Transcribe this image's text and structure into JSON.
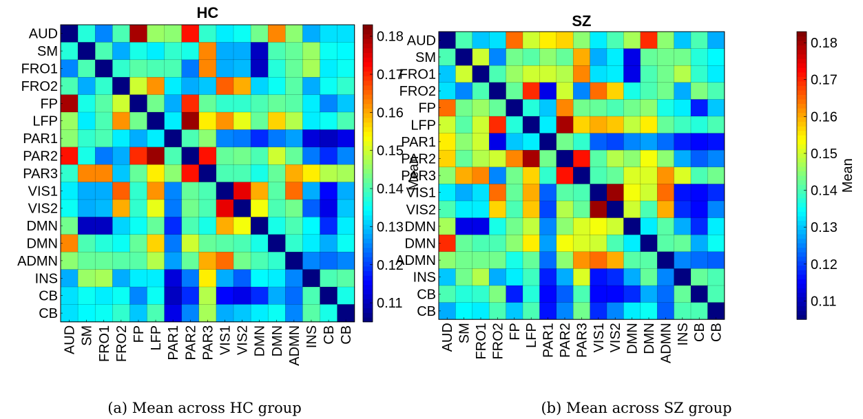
{
  "chart_data": [
    {
      "type": "heatmap",
      "title": "HC",
      "caption": "(a) Mean across HC group",
      "rows": [
        "AUD",
        "SM",
        "FRO1",
        "FRO2",
        "FP",
        "LFP",
        "PAR1",
        "PAR2",
        "PAR3",
        "VIS1",
        "VIS2",
        "DMN",
        "DMN",
        "ADMN",
        "INS",
        "CB",
        "CB"
      ],
      "cols": [
        "AUD",
        "SM",
        "FRO1",
        "FRO2",
        "FP",
        "LFP",
        "PAR1",
        "PAR2",
        "PAR3",
        "VIS1",
        "VIS2",
        "DMN",
        "DMN",
        "ADMN",
        "INS",
        "CB",
        "CB"
      ],
      "values": [
        [
          0.105,
          0.137,
          0.125,
          0.14,
          0.18,
          0.146,
          0.145,
          0.172,
          0.138,
          0.133,
          0.135,
          0.143,
          0.163,
          0.145,
          0.128,
          0.132,
          0.132
        ],
        [
          0.137,
          0.105,
          0.14,
          0.128,
          0.136,
          0.133,
          0.138,
          0.136,
          0.163,
          0.128,
          0.128,
          0.11,
          0.14,
          0.142,
          0.146,
          0.135,
          0.134
        ],
        [
          0.125,
          0.14,
          0.105,
          0.138,
          0.141,
          0.14,
          0.14,
          0.124,
          0.163,
          0.128,
          0.129,
          0.11,
          0.137,
          0.142,
          0.147,
          0.133,
          0.135
        ],
        [
          0.14,
          0.128,
          0.138,
          0.105,
          0.15,
          0.162,
          0.133,
          0.128,
          0.13,
          0.166,
          0.16,
          0.131,
          0.135,
          0.141,
          0.128,
          0.135,
          0.138
        ],
        [
          0.18,
          0.136,
          0.141,
          0.15,
          0.105,
          0.143,
          0.128,
          0.17,
          0.142,
          0.138,
          0.138,
          0.14,
          0.142,
          0.141,
          0.133,
          0.125,
          0.13
        ],
        [
          0.146,
          0.133,
          0.14,
          0.162,
          0.143,
          0.105,
          0.133,
          0.181,
          0.155,
          0.162,
          0.152,
          0.142,
          0.157,
          0.148,
          0.133,
          0.135,
          0.14
        ],
        [
          0.145,
          0.138,
          0.14,
          0.133,
          0.128,
          0.133,
          0.105,
          0.14,
          0.145,
          0.125,
          0.124,
          0.118,
          0.124,
          0.127,
          0.112,
          0.11,
          0.113
        ],
        [
          0.172,
          0.136,
          0.124,
          0.128,
          0.17,
          0.181,
          0.14,
          0.105,
          0.172,
          0.142,
          0.143,
          0.14,
          0.15,
          0.142,
          0.124,
          0.118,
          0.125
        ],
        [
          0.138,
          0.163,
          0.163,
          0.13,
          0.142,
          0.155,
          0.145,
          0.172,
          0.105,
          0.14,
          0.14,
          0.136,
          0.142,
          0.16,
          0.155,
          0.148,
          0.147
        ],
        [
          0.133,
          0.128,
          0.128,
          0.166,
          0.138,
          0.162,
          0.125,
          0.142,
          0.14,
          0.105,
          0.175,
          0.16,
          0.141,
          0.165,
          0.128,
          0.115,
          0.128
        ],
        [
          0.135,
          0.128,
          0.129,
          0.16,
          0.138,
          0.152,
          0.124,
          0.143,
          0.14,
          0.175,
          0.105,
          0.153,
          0.14,
          0.143,
          0.122,
          0.113,
          0.13
        ],
        [
          0.143,
          0.11,
          0.11,
          0.131,
          0.135,
          0.142,
          0.118,
          0.14,
          0.136,
          0.16,
          0.153,
          0.105,
          0.136,
          0.14,
          0.134,
          0.118,
          0.133
        ],
        [
          0.163,
          0.14,
          0.137,
          0.135,
          0.142,
          0.157,
          0.124,
          0.15,
          0.142,
          0.141,
          0.14,
          0.136,
          0.105,
          0.138,
          0.133,
          0.128,
          0.135
        ],
        [
          0.145,
          0.142,
          0.142,
          0.141,
          0.141,
          0.148,
          0.127,
          0.142,
          0.16,
          0.165,
          0.143,
          0.14,
          0.138,
          0.105,
          0.125,
          0.123,
          0.125
        ],
        [
          0.128,
          0.146,
          0.147,
          0.128,
          0.133,
          0.133,
          0.112,
          0.124,
          0.155,
          0.128,
          0.122,
          0.134,
          0.133,
          0.125,
          0.105,
          0.14,
          0.141
        ],
        [
          0.132,
          0.135,
          0.133,
          0.135,
          0.125,
          0.135,
          0.11,
          0.118,
          0.148,
          0.115,
          0.113,
          0.118,
          0.128,
          0.123,
          0.14,
          0.105,
          0.136
        ],
        [
          0.132,
          0.134,
          0.135,
          0.138,
          0.13,
          0.14,
          0.113,
          0.125,
          0.147,
          0.128,
          0.13,
          0.133,
          0.135,
          0.125,
          0.141,
          0.136,
          0.105
        ]
      ],
      "clim": [
        0.105,
        0.183
      ],
      "colorbar": {
        "label": "Mean",
        "ticks": [
          "0.11",
          "0.12",
          "0.13",
          "0.14",
          "0.15",
          "0.16",
          "0.17",
          "0.18"
        ],
        "tick_values": [
          0.11,
          0.12,
          0.13,
          0.14,
          0.15,
          0.16,
          0.17,
          0.18
        ]
      },
      "colormap": "jet",
      "grid": true
    },
    {
      "type": "heatmap",
      "title": "SZ",
      "caption": "(b) Mean across SZ group",
      "rows": [
        "AUD",
        "SM",
        "FRO1",
        "FRO2",
        "FP",
        "LFP",
        "PAR1",
        "PAR2",
        "PAR3",
        "VIS1",
        "VIS2",
        "DMN",
        "DMN",
        "ADMN",
        "INS",
        "CB",
        "CB"
      ],
      "cols": [
        "AUD",
        "SM",
        "FRO1",
        "FRO2",
        "FP",
        "LFP",
        "PAR1",
        "PAR2",
        "PAR3",
        "VIS1",
        "VIS2",
        "DMN",
        "DMN",
        "ADMN",
        "INS",
        "CB",
        "CB"
      ],
      "values": [
        [
          0.105,
          0.14,
          0.13,
          0.132,
          0.165,
          0.15,
          0.155,
          0.157,
          0.145,
          0.133,
          0.14,
          0.147,
          0.17,
          0.145,
          0.13,
          0.14,
          0.128
        ],
        [
          0.14,
          0.105,
          0.15,
          0.125,
          0.143,
          0.141,
          0.145,
          0.142,
          0.16,
          0.128,
          0.133,
          0.113,
          0.142,
          0.143,
          0.143,
          0.137,
          0.134
        ],
        [
          0.13,
          0.15,
          0.105,
          0.14,
          0.146,
          0.15,
          0.15,
          0.148,
          0.163,
          0.132,
          0.133,
          0.113,
          0.14,
          0.143,
          0.148,
          0.138,
          0.133
        ],
        [
          0.132,
          0.125,
          0.14,
          0.105,
          0.142,
          0.17,
          0.113,
          0.15,
          0.125,
          0.165,
          0.157,
          0.136,
          0.14,
          0.143,
          0.128,
          0.144,
          0.14
        ],
        [
          0.165,
          0.143,
          0.146,
          0.142,
          0.105,
          0.137,
          0.13,
          0.163,
          0.143,
          0.142,
          0.14,
          0.143,
          0.145,
          0.136,
          0.133,
          0.117,
          0.13
        ],
        [
          0.15,
          0.141,
          0.15,
          0.17,
          0.137,
          0.105,
          0.133,
          0.18,
          0.157,
          0.16,
          0.158,
          0.149,
          0.155,
          0.142,
          0.139,
          0.137,
          0.14
        ],
        [
          0.155,
          0.145,
          0.15,
          0.113,
          0.13,
          0.133,
          0.105,
          0.143,
          0.138,
          0.122,
          0.12,
          0.125,
          0.127,
          0.123,
          0.117,
          0.115,
          0.116
        ],
        [
          0.157,
          0.142,
          0.148,
          0.15,
          0.163,
          0.18,
          0.143,
          0.105,
          0.172,
          0.141,
          0.148,
          0.145,
          0.153,
          0.145,
          0.128,
          0.122,
          0.125
        ],
        [
          0.145,
          0.16,
          0.163,
          0.125,
          0.143,
          0.157,
          0.138,
          0.172,
          0.105,
          0.14,
          0.142,
          0.151,
          0.151,
          0.162,
          0.151,
          0.14,
          0.143
        ],
        [
          0.133,
          0.128,
          0.132,
          0.165,
          0.142,
          0.16,
          0.122,
          0.141,
          0.14,
          0.105,
          0.181,
          0.153,
          0.15,
          0.165,
          0.116,
          0.115,
          0.118
        ],
        [
          0.14,
          0.133,
          0.133,
          0.157,
          0.14,
          0.158,
          0.12,
          0.148,
          0.142,
          0.181,
          0.105,
          0.15,
          0.14,
          0.16,
          0.118,
          0.115,
          0.125
        ],
        [
          0.147,
          0.113,
          0.113,
          0.136,
          0.143,
          0.149,
          0.125,
          0.145,
          0.151,
          0.153,
          0.15,
          0.105,
          0.133,
          0.141,
          0.128,
          0.118,
          0.133
        ],
        [
          0.17,
          0.142,
          0.14,
          0.14,
          0.145,
          0.155,
          0.127,
          0.153,
          0.151,
          0.15,
          0.14,
          0.133,
          0.105,
          0.141,
          0.142,
          0.128,
          0.135
        ],
        [
          0.145,
          0.143,
          0.143,
          0.143,
          0.136,
          0.142,
          0.123,
          0.145,
          0.162,
          0.165,
          0.16,
          0.141,
          0.141,
          0.105,
          0.125,
          0.123,
          0.122
        ],
        [
          0.13,
          0.143,
          0.148,
          0.128,
          0.133,
          0.139,
          0.117,
          0.128,
          0.151,
          0.116,
          0.118,
          0.128,
          0.142,
          0.125,
          0.105,
          0.142,
          0.14
        ],
        [
          0.14,
          0.137,
          0.138,
          0.144,
          0.117,
          0.137,
          0.115,
          0.122,
          0.14,
          0.115,
          0.115,
          0.118,
          0.128,
          0.123,
          0.142,
          0.105,
          0.14
        ],
        [
          0.128,
          0.134,
          0.133,
          0.14,
          0.13,
          0.14,
          0.116,
          0.125,
          0.143,
          0.118,
          0.125,
          0.133,
          0.135,
          0.122,
          0.14,
          0.14,
          0.105
        ]
      ],
      "clim": [
        0.105,
        0.183
      ],
      "colorbar": {
        "label": "Mean",
        "ticks": [
          "0.11",
          "0.12",
          "0.13",
          "0.14",
          "0.15",
          "0.16",
          "0.17",
          "0.18"
        ],
        "tick_values": [
          0.11,
          0.12,
          0.13,
          0.14,
          0.15,
          0.16,
          0.17,
          0.18
        ]
      },
      "colormap": "jet",
      "grid": true
    }
  ]
}
